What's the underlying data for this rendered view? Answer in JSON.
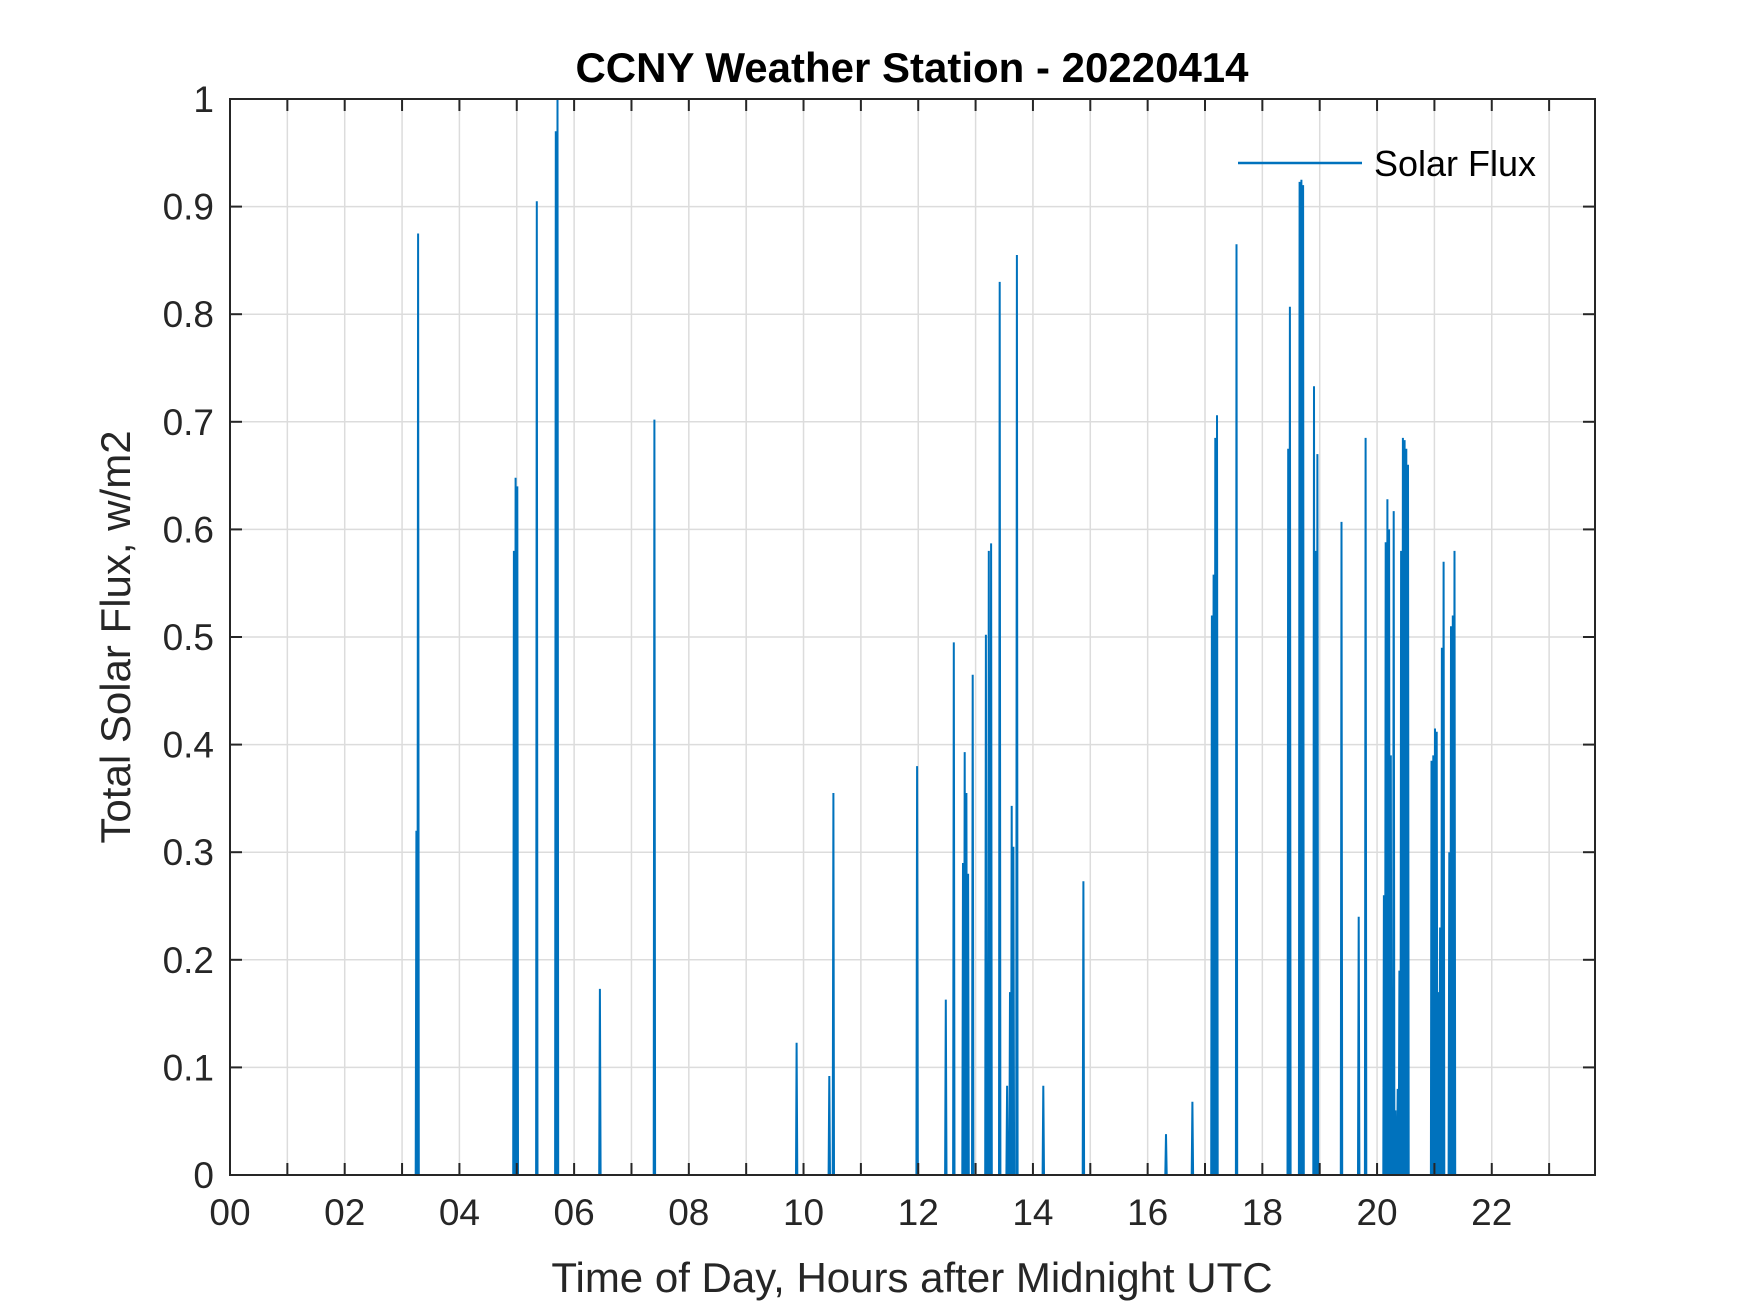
{
  "chart_data": {
    "type": "line",
    "title": "CCNY Weather Station - 20220414",
    "xlabel": "Time of Day, Hours after Midnight UTC",
    "ylabel": "Total Solar Flux, w/m2",
    "xlim": [
      0,
      23.8
    ],
    "ylim": [
      0,
      1
    ],
    "x_ticks": [
      0,
      2,
      4,
      6,
      8,
      10,
      12,
      14,
      16,
      18,
      20,
      22
    ],
    "x_tick_labels": [
      "00",
      "02",
      "04",
      "06",
      "08",
      "10",
      "12",
      "14",
      "16",
      "18",
      "20",
      "22"
    ],
    "y_ticks": [
      0,
      0.1,
      0.2,
      0.3,
      0.4,
      0.5,
      0.6,
      0.7,
      0.8,
      0.9,
      1
    ],
    "y_tick_labels": [
      "0",
      "0.1",
      "0.2",
      "0.3",
      "0.4",
      "0.5",
      "0.6",
      "0.7",
      "0.8",
      "0.9",
      "1"
    ],
    "grid": true,
    "legend_position": "top-right",
    "color": "#0072BD",
    "series": [
      {
        "name": "Solar Flux",
        "spikes": [
          [
            3.25,
            0.32
          ],
          [
            3.28,
            0.875
          ],
          [
            4.95,
            0.58
          ],
          [
            4.98,
            0.648
          ],
          [
            5.01,
            0.64
          ],
          [
            5.35,
            0.905
          ],
          [
            5.68,
            0.97
          ],
          [
            5.71,
            1.0
          ],
          [
            6.45,
            0.173
          ],
          [
            7.4,
            0.702
          ],
          [
            9.88,
            0.123
          ],
          [
            10.45,
            0.092
          ],
          [
            10.52,
            0.355
          ],
          [
            11.98,
            0.38
          ],
          [
            12.48,
            0.163
          ],
          [
            12.62,
            0.495
          ],
          [
            12.78,
            0.29
          ],
          [
            12.81,
            0.393
          ],
          [
            12.84,
            0.355
          ],
          [
            12.87,
            0.28
          ],
          [
            12.95,
            0.465
          ],
          [
            13.18,
            0.502
          ],
          [
            13.23,
            0.58
          ],
          [
            13.27,
            0.587
          ],
          [
            13.42,
            0.83
          ],
          [
            13.55,
            0.083
          ],
          [
            13.6,
            0.17
          ],
          [
            13.63,
            0.343
          ],
          [
            13.66,
            0.305
          ],
          [
            13.72,
            0.855
          ],
          [
            14.18,
            0.083
          ],
          [
            14.88,
            0.273
          ],
          [
            16.32,
            0.038
          ],
          [
            16.78,
            0.068
          ],
          [
            17.12,
            0.52
          ],
          [
            17.15,
            0.558
          ],
          [
            17.18,
            0.685
          ],
          [
            17.21,
            0.706
          ],
          [
            17.55,
            0.865
          ],
          [
            18.45,
            0.675
          ],
          [
            18.48,
            0.807
          ],
          [
            18.65,
            0.923
          ],
          [
            18.68,
            0.925
          ],
          [
            18.71,
            0.92
          ],
          [
            18.9,
            0.733
          ],
          [
            18.93,
            0.58
          ],
          [
            18.96,
            0.67
          ],
          [
            19.38,
            0.607
          ],
          [
            19.68,
            0.24
          ],
          [
            19.8,
            0.685
          ],
          [
            20.12,
            0.26
          ],
          [
            20.15,
            0.588
          ],
          [
            20.18,
            0.628
          ],
          [
            20.21,
            0.6
          ],
          [
            20.24,
            0.39
          ],
          [
            20.29,
            0.617
          ],
          [
            20.32,
            0.06
          ],
          [
            20.36,
            0.08
          ],
          [
            20.39,
            0.19
          ],
          [
            20.42,
            0.58
          ],
          [
            20.45,
            0.685
          ],
          [
            20.48,
            0.683
          ],
          [
            20.51,
            0.675
          ],
          [
            20.54,
            0.66
          ],
          [
            20.95,
            0.385
          ],
          [
            20.98,
            0.39
          ],
          [
            21.01,
            0.415
          ],
          [
            21.04,
            0.412
          ],
          [
            21.07,
            0.17
          ],
          [
            21.1,
            0.23
          ],
          [
            21.13,
            0.49
          ],
          [
            21.16,
            0.57
          ],
          [
            21.26,
            0.3
          ],
          [
            21.29,
            0.51
          ],
          [
            21.32,
            0.52
          ],
          [
            21.35,
            0.58
          ]
        ]
      }
    ]
  }
}
